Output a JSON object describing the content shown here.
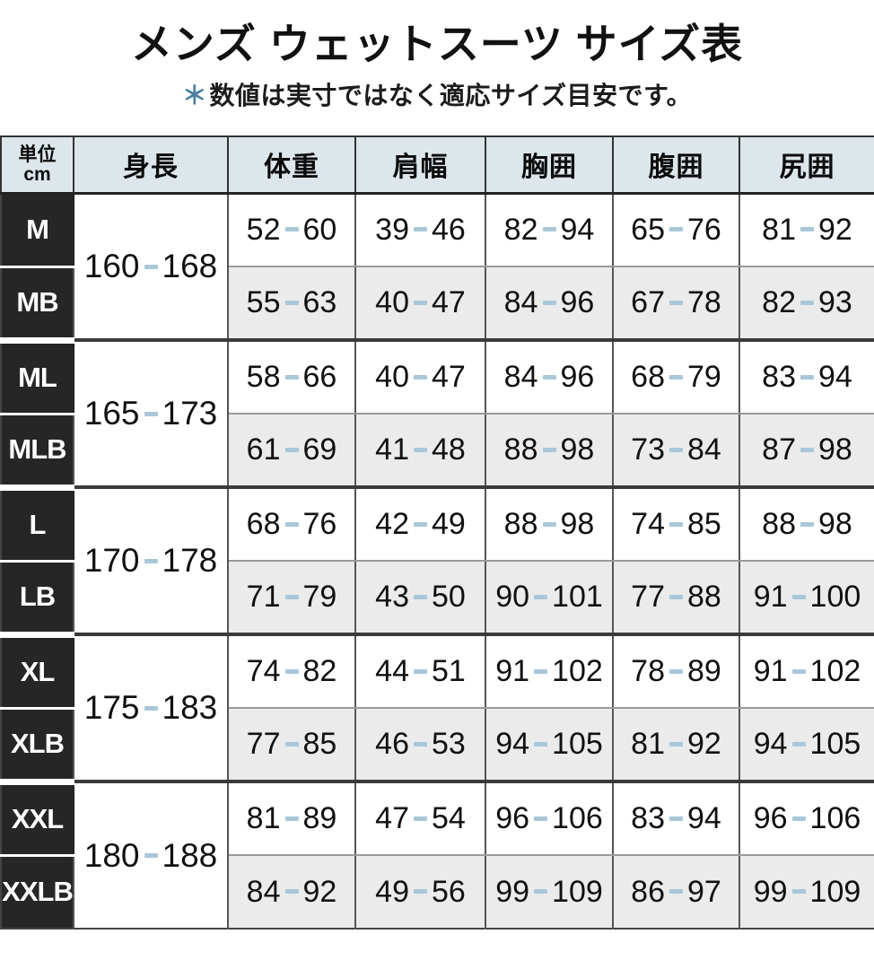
{
  "page": {
    "title": "メンズ ウェットスーツ サイズ表",
    "note_asterisk": "＊",
    "note_text": "数値は実寸ではなく適応サイズ目安です。"
  },
  "table": {
    "unit_label_line1": "単位",
    "unit_label_line2": "cm",
    "columns": [
      "身長",
      "体重",
      "肩幅",
      "胸囲",
      "腹囲",
      "尻囲"
    ],
    "groups": [
      {
        "height": "160-168",
        "rows": [
          {
            "size": "M",
            "values": [
              "52-60",
              "39-46",
              "82-94",
              "65-76",
              "81-92"
            ]
          },
          {
            "size": "MB",
            "values": [
              "55-63",
              "40-47",
              "84-96",
              "67-78",
              "82-93"
            ]
          }
        ]
      },
      {
        "height": "165-173",
        "rows": [
          {
            "size": "ML",
            "values": [
              "58-66",
              "40-47",
              "84-96",
              "68-79",
              "83-94"
            ]
          },
          {
            "size": "MLB",
            "values": [
              "61-69",
              "41-48",
              "88-98",
              "73-84",
              "87-98"
            ]
          }
        ]
      },
      {
        "height": "170-178",
        "rows": [
          {
            "size": "L",
            "values": [
              "68-76",
              "42-49",
              "88-98",
              "74-85",
              "88-98"
            ]
          },
          {
            "size": "LB",
            "values": [
              "71-79",
              "43-50",
              "90-101",
              "77-88",
              "91-100"
            ]
          }
        ]
      },
      {
        "height": "175-183",
        "rows": [
          {
            "size": "XL",
            "values": [
              "74-82",
              "44-51",
              "91-102",
              "78-89",
              "91-102"
            ]
          },
          {
            "size": "XLB",
            "values": [
              "77-85",
              "46-53",
              "94-105",
              "81-92",
              "94-105"
            ]
          }
        ]
      },
      {
        "height": "180-188",
        "rows": [
          {
            "size": "XXL",
            "values": [
              "81-89",
              "47-54",
              "96-106",
              "83-94",
              "96-106"
            ]
          },
          {
            "size": "XXLB",
            "values": [
              "84-92",
              "49-56",
              "99-109",
              "86-97",
              "99-109"
            ]
          }
        ]
      }
    ]
  },
  "colors": {
    "header_bg": "#dce6eb",
    "size_column_bg": "#262626",
    "alt_row_bg": "#ebebeb",
    "range_dash": "#a9c7d9",
    "note_asterisk": "#4a80a2"
  }
}
